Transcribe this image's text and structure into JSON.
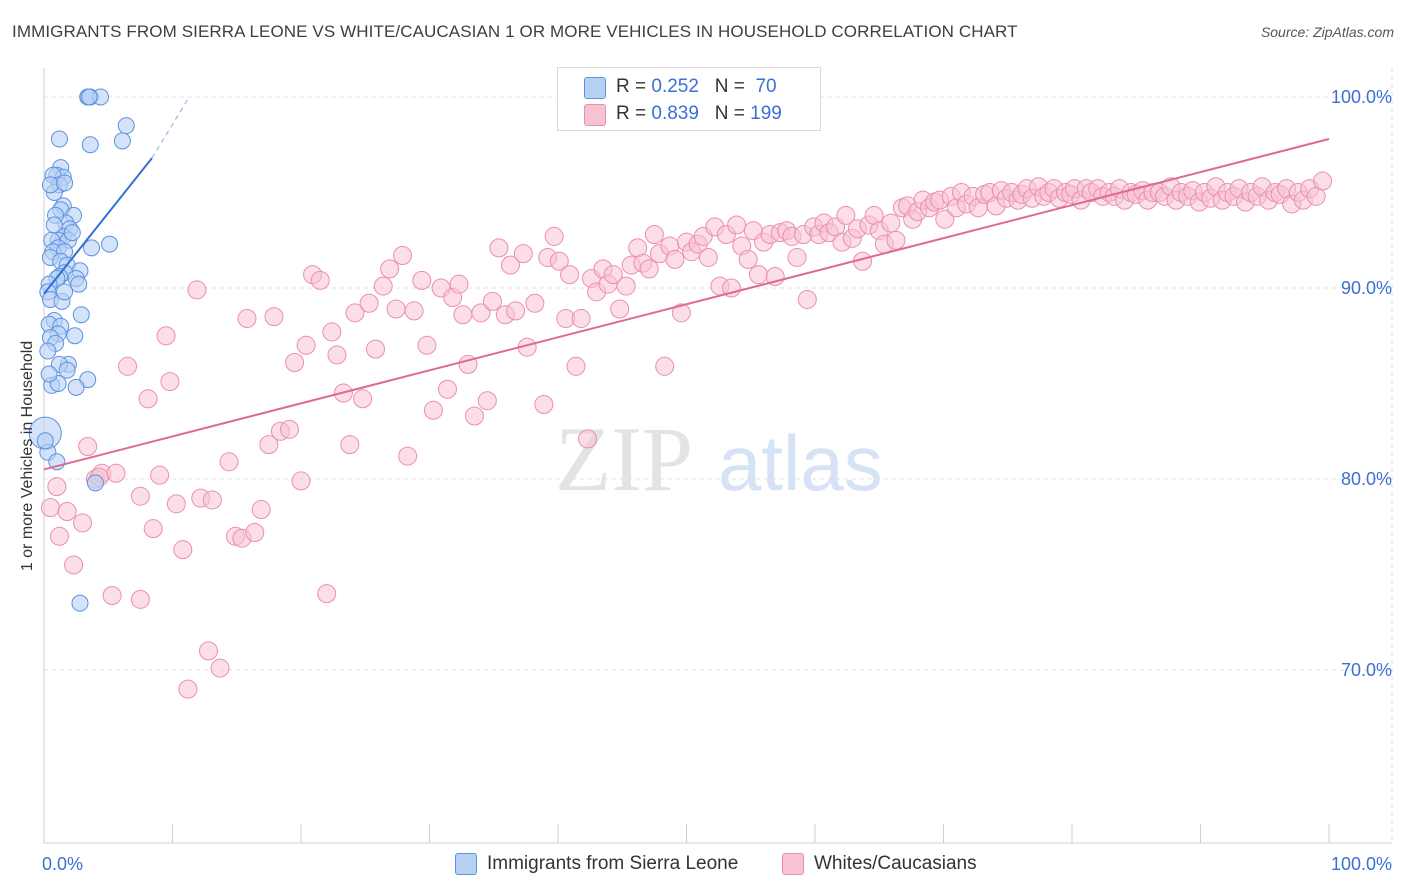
{
  "title": "IMMIGRANTS FROM SIERRA LEONE VS WHITE/CAUCASIAN 1 OR MORE VEHICLES IN HOUSEHOLD CORRELATION CHART",
  "source": "Source: ZipAtlas.com",
  "watermark": {
    "zip": "ZIP",
    "atlas": "atlas"
  },
  "colors": {
    "blue_fill": "#b7d1f5",
    "blue_stroke": "#5b93df",
    "blue_line": "#2f6fd6",
    "pink_fill": "#f7c3d4",
    "pink_stroke": "#eb8fae",
    "pink_line": "#e06994",
    "axis_text": "#3b6fd6",
    "grid": "#e1e1e1"
  },
  "legend": {
    "series1": {
      "r_label": "R =",
      "r_value": "0.252",
      "n_label": "N =",
      "n_value": "70"
    },
    "series2": {
      "r_label": "R =",
      "r_value": "0.839",
      "n_label": "N =",
      "n_value": "199"
    }
  },
  "bottom_legend": {
    "series1": "Immigrants from Sierra Leone",
    "series2": "Whites/Caucasians"
  },
  "chart_data": {
    "type": "scatter",
    "title": "IMMIGRANTS FROM SIERRA LEONE VS WHITE/CAUCASIAN 1 OR MORE VEHICLES IN HOUSEHOLD CORRELATION CHART",
    "xlabel": "",
    "ylabel": "1 or more Vehicles in Household",
    "xlim": [
      0,
      100
    ],
    "ylim": [
      61,
      101.5
    ],
    "x_tick_labels": [
      "0.0%",
      "100.0%"
    ],
    "y_ticks": [
      70,
      80,
      90,
      100
    ],
    "y_tick_labels": [
      "70.0%",
      "80.0%",
      "90.0%",
      "100.0%"
    ],
    "grid": true,
    "series": [
      {
        "name": "Immigrants from Sierra Leone",
        "R": 0.252,
        "N": 70,
        "trend": {
          "x": [
            0.0,
            8.4
          ],
          "y": [
            89.7,
            96.8
          ]
        },
        "trend_extension": {
          "x": [
            8.4,
            11.3
          ],
          "y": [
            96.8,
            100.0
          ]
        },
        "points": [
          [
            3.4,
            100
          ],
          [
            3.6,
            100
          ],
          [
            4.4,
            100
          ],
          [
            3.5,
            100
          ],
          [
            6.4,
            98.5
          ],
          [
            1.2,
            97.8
          ],
          [
            3.6,
            97.5
          ],
          [
            6.1,
            97.7
          ],
          [
            1.3,
            96.3
          ],
          [
            1.0,
            95.9
          ],
          [
            1.5,
            95.8
          ],
          [
            0.7,
            95.9
          ],
          [
            1.2,
            95.4
          ],
          [
            0.8,
            95.0
          ],
          [
            0.5,
            95.4
          ],
          [
            1.5,
            94.3
          ],
          [
            1.3,
            94.1
          ],
          [
            2.3,
            93.8
          ],
          [
            1.7,
            93.4
          ],
          [
            2.0,
            93.1
          ],
          [
            1.5,
            92.7
          ],
          [
            1.1,
            92.5
          ],
          [
            0.6,
            92.5
          ],
          [
            1.9,
            92.5
          ],
          [
            5.1,
            92.3
          ],
          [
            3.7,
            92.1
          ],
          [
            1.1,
            92.1
          ],
          [
            0.7,
            91.9
          ],
          [
            1.6,
            91.9
          ],
          [
            0.5,
            91.6
          ],
          [
            1.3,
            91.4
          ],
          [
            1.8,
            91.2
          ],
          [
            2.8,
            90.9
          ],
          [
            1.6,
            90.8
          ],
          [
            1.2,
            90.6
          ],
          [
            2.5,
            90.5
          ],
          [
            1.0,
            90.5
          ],
          [
            2.7,
            90.2
          ],
          [
            0.4,
            90.2
          ],
          [
            0.3,
            89.8
          ],
          [
            0.5,
            89.4
          ],
          [
            1.4,
            89.3
          ],
          [
            0.8,
            88.3
          ],
          [
            0.4,
            88.1
          ],
          [
            1.3,
            88.0
          ],
          [
            1.1,
            87.6
          ],
          [
            0.5,
            87.4
          ],
          [
            2.4,
            87.5
          ],
          [
            0.9,
            87.1
          ],
          [
            0.3,
            86.7
          ],
          [
            1.9,
            86.0
          ],
          [
            1.2,
            86.0
          ],
          [
            1.8,
            85.7
          ],
          [
            0.6,
            84.9
          ],
          [
            1.1,
            85.0
          ],
          [
            3.4,
            85.2
          ],
          [
            2.5,
            84.8
          ],
          [
            0.1,
            82.4
          ],
          [
            0.3,
            81.4
          ],
          [
            4.0,
            79.8
          ],
          [
            2.8,
            73.5
          ],
          [
            0.1,
            82.0
          ],
          [
            1.0,
            80.9
          ],
          [
            0.4,
            85.5
          ],
          [
            2.9,
            88.6
          ],
          [
            1.6,
            89.8
          ],
          [
            2.2,
            92.9
          ],
          [
            0.9,
            93.8
          ],
          [
            1.6,
            95.5
          ],
          [
            0.8,
            93.3
          ]
        ]
      },
      {
        "name": "Whites/Caucasians",
        "R": 0.839,
        "N": 199,
        "trend": {
          "x": [
            0.0,
            100.0
          ],
          "y": [
            80.5,
            97.8
          ]
        },
        "points": [
          [
            0.5,
            78.5
          ],
          [
            1.0,
            79.6
          ],
          [
            1.2,
            77.0
          ],
          [
            1.8,
            78.3
          ],
          [
            2.3,
            75.5
          ],
          [
            3.0,
            77.7
          ],
          [
            3.4,
            81.7
          ],
          [
            4.0,
            80.0
          ],
          [
            4.5,
            80.3
          ],
          [
            4.3,
            80.1
          ],
          [
            5.6,
            80.3
          ],
          [
            5.3,
            73.9
          ],
          [
            6.5,
            85.9
          ],
          [
            7.5,
            73.7
          ],
          [
            7.5,
            79.1
          ],
          [
            8.1,
            84.2
          ],
          [
            8.5,
            77.4
          ],
          [
            9.0,
            80.2
          ],
          [
            9.5,
            87.5
          ],
          [
            9.8,
            85.1
          ],
          [
            10.3,
            78.7
          ],
          [
            10.8,
            76.3
          ],
          [
            11.2,
            69.0
          ],
          [
            11.9,
            89.9
          ],
          [
            12.2,
            79.0
          ],
          [
            12.8,
            71.0
          ],
          [
            13.1,
            78.9
          ],
          [
            13.7,
            70.1
          ],
          [
            14.4,
            80.9
          ],
          [
            14.9,
            77.0
          ],
          [
            15.4,
            76.9
          ],
          [
            15.8,
            88.4
          ],
          [
            16.4,
            77.2
          ],
          [
            16.9,
            78.4
          ],
          [
            17.5,
            81.8
          ],
          [
            17.9,
            88.5
          ],
          [
            18.4,
            82.5
          ],
          [
            19.1,
            82.6
          ],
          [
            19.5,
            86.1
          ],
          [
            20.0,
            79.9
          ],
          [
            20.4,
            87.0
          ],
          [
            20.9,
            90.7
          ],
          [
            21.5,
            90.4
          ],
          [
            22.0,
            74.0
          ],
          [
            22.4,
            87.7
          ],
          [
            22.8,
            86.5
          ],
          [
            23.3,
            84.5
          ],
          [
            23.8,
            81.8
          ],
          [
            24.2,
            88.7
          ],
          [
            24.8,
            84.2
          ],
          [
            25.3,
            89.2
          ],
          [
            25.8,
            86.8
          ],
          [
            26.4,
            90.1
          ],
          [
            26.9,
            91.0
          ],
          [
            27.4,
            88.9
          ],
          [
            27.9,
            91.7
          ],
          [
            28.3,
            81.2
          ],
          [
            28.8,
            88.8
          ],
          [
            29.4,
            90.4
          ],
          [
            29.8,
            87.0
          ],
          [
            30.3,
            83.6
          ],
          [
            30.9,
            90.0
          ],
          [
            31.4,
            84.7
          ],
          [
            31.8,
            89.5
          ],
          [
            32.3,
            90.2
          ],
          [
            32.6,
            88.6
          ],
          [
            33.0,
            86.0
          ],
          [
            33.5,
            83.3
          ],
          [
            34.0,
            88.7
          ],
          [
            34.5,
            84.1
          ],
          [
            34.9,
            89.3
          ],
          [
            35.4,
            92.1
          ],
          [
            35.9,
            88.6
          ],
          [
            36.3,
            91.2
          ],
          [
            36.7,
            88.8
          ],
          [
            37.3,
            91.8
          ],
          [
            37.6,
            86.9
          ],
          [
            38.2,
            89.2
          ],
          [
            38.9,
            83.9
          ],
          [
            39.2,
            91.6
          ],
          [
            39.7,
            92.7
          ],
          [
            40.1,
            91.4
          ],
          [
            40.6,
            88.4
          ],
          [
            40.9,
            90.7
          ],
          [
            41.4,
            85.9
          ],
          [
            41.8,
            88.4
          ],
          [
            42.3,
            82.1
          ],
          [
            42.6,
            90.5
          ],
          [
            43.0,
            89.8
          ],
          [
            43.5,
            91.0
          ],
          [
            43.9,
            90.2
          ],
          [
            44.3,
            90.7
          ],
          [
            44.8,
            88.9
          ],
          [
            45.3,
            90.1
          ],
          [
            45.7,
            91.2
          ],
          [
            46.2,
            92.1
          ],
          [
            46.6,
            91.3
          ],
          [
            47.1,
            91.0
          ],
          [
            47.5,
            92.8
          ],
          [
            47.9,
            91.8
          ],
          [
            48.3,
            85.9
          ],
          [
            48.7,
            92.2
          ],
          [
            49.1,
            91.5
          ],
          [
            49.6,
            88.7
          ],
          [
            50.0,
            92.4
          ],
          [
            50.4,
            91.9
          ],
          [
            50.9,
            92.3
          ],
          [
            51.3,
            92.7
          ],
          [
            51.7,
            91.6
          ],
          [
            52.2,
            93.2
          ],
          [
            52.6,
            90.1
          ],
          [
            53.1,
            92.8
          ],
          [
            53.5,
            90.0
          ],
          [
            53.9,
            93.3
          ],
          [
            54.3,
            92.2
          ],
          [
            54.8,
            91.5
          ],
          [
            55.2,
            93.0
          ],
          [
            55.6,
            90.7
          ],
          [
            56.0,
            92.4
          ],
          [
            56.5,
            92.8
          ],
          [
            56.9,
            90.6
          ],
          [
            57.3,
            92.9
          ],
          [
            57.8,
            93.0
          ],
          [
            58.2,
            92.7
          ],
          [
            58.6,
            91.6
          ],
          [
            59.1,
            92.8
          ],
          [
            59.4,
            89.4
          ],
          [
            59.9,
            93.2
          ],
          [
            60.3,
            92.8
          ],
          [
            60.7,
            93.4
          ],
          [
            61.1,
            92.9
          ],
          [
            61.6,
            93.2
          ],
          [
            62.1,
            92.4
          ],
          [
            62.4,
            93.8
          ],
          [
            62.9,
            92.6
          ],
          [
            63.3,
            93.1
          ],
          [
            63.7,
            91.4
          ],
          [
            64.2,
            93.3
          ],
          [
            64.6,
            93.8
          ],
          [
            65.0,
            93.0
          ],
          [
            65.4,
            92.3
          ],
          [
            65.9,
            93.4
          ],
          [
            66.3,
            92.5
          ],
          [
            66.8,
            94.2
          ],
          [
            67.2,
            94.3
          ],
          [
            67.6,
            93.6
          ],
          [
            68.0,
            94.0
          ],
          [
            68.4,
            94.6
          ],
          [
            68.9,
            94.2
          ],
          [
            69.3,
            94.5
          ],
          [
            69.7,
            94.6
          ],
          [
            70.1,
            93.6
          ],
          [
            70.6,
            94.8
          ],
          [
            71.0,
            94.2
          ],
          [
            71.4,
            95.0
          ],
          [
            71.8,
            94.4
          ],
          [
            72.3,
            94.8
          ],
          [
            72.7,
            94.2
          ],
          [
            73.2,
            94.9
          ],
          [
            73.6,
            95.0
          ],
          [
            74.1,
            94.3
          ],
          [
            74.5,
            95.1
          ],
          [
            74.9,
            94.7
          ],
          [
            75.3,
            95.0
          ],
          [
            75.8,
            94.6
          ],
          [
            76.1,
            94.9
          ],
          [
            76.5,
            95.2
          ],
          [
            76.9,
            94.7
          ],
          [
            77.4,
            95.3
          ],
          [
            77.8,
            94.8
          ],
          [
            78.2,
            95.0
          ],
          [
            78.6,
            95.2
          ],
          [
            79.0,
            94.7
          ],
          [
            79.5,
            95.0
          ],
          [
            79.9,
            94.9
          ],
          [
            80.2,
            95.2
          ],
          [
            80.7,
            94.6
          ],
          [
            81.1,
            95.2
          ],
          [
            81.5,
            95.0
          ],
          [
            82.0,
            95.2
          ],
          [
            82.4,
            94.8
          ],
          [
            82.9,
            95.0
          ],
          [
            83.3,
            94.8
          ],
          [
            83.7,
            95.2
          ],
          [
            84.1,
            94.6
          ],
          [
            84.6,
            95.0
          ],
          [
            85.0,
            94.9
          ],
          [
            85.5,
            95.1
          ],
          [
            85.9,
            94.6
          ],
          [
            86.3,
            95.0
          ],
          [
            86.8,
            95.0
          ],
          [
            87.2,
            94.8
          ],
          [
            87.7,
            95.3
          ],
          [
            88.1,
            94.6
          ],
          [
            88.5,
            95.0
          ],
          [
            89.0,
            94.8
          ],
          [
            89.4,
            95.1
          ],
          [
            89.9,
            94.5
          ],
          [
            90.3,
            95.0
          ],
          [
            90.8,
            94.7
          ],
          [
            91.2,
            95.3
          ],
          [
            91.7,
            94.6
          ],
          [
            92.1,
            95.0
          ],
          [
            92.6,
            94.8
          ],
          [
            93.0,
            95.2
          ],
          [
            93.5,
            94.5
          ],
          [
            93.9,
            95.0
          ],
          [
            94.4,
            94.8
          ],
          [
            94.8,
            95.3
          ],
          [
            95.3,
            94.6
          ],
          [
            95.8,
            95.0
          ],
          [
            96.2,
            94.9
          ],
          [
            96.7,
            95.2
          ],
          [
            97.1,
            94.4
          ],
          [
            97.6,
            95.0
          ],
          [
            98.0,
            94.6
          ],
          [
            98.5,
            95.2
          ],
          [
            99.0,
            94.8
          ],
          [
            99.5,
            95.6
          ]
        ]
      }
    ]
  }
}
